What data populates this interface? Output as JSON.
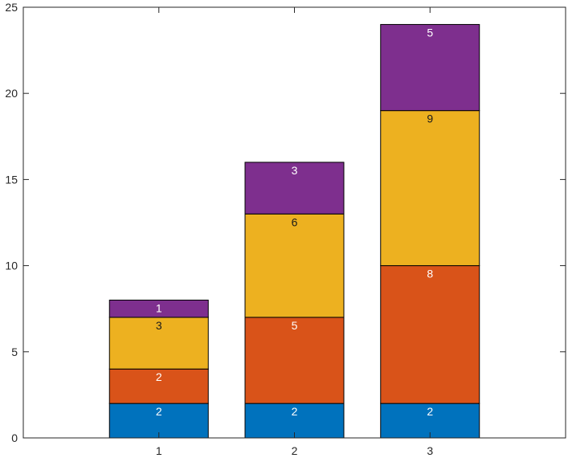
{
  "chart_data": {
    "type": "bar",
    "stacked": true,
    "categories": [
      "1",
      "2",
      "3"
    ],
    "series": [
      {
        "values": [
          2,
          2,
          2
        ],
        "color": "#0072BD",
        "label_color": "#ffffff"
      },
      {
        "values": [
          2,
          5,
          8
        ],
        "color": "#D95319",
        "label_color": "#ffffff"
      },
      {
        "values": [
          3,
          6,
          9
        ],
        "color": "#EDB120",
        "label_color": "#1a1a1a"
      },
      {
        "values": [
          1,
          3,
          5
        ],
        "color": "#7E2F8E",
        "label_color": "#ffffff"
      }
    ],
    "title": "",
    "xlabel": "",
    "ylabel": "",
    "xlim": [
      0,
      4
    ],
    "ylim": [
      0,
      25
    ],
    "yticks": [
      0,
      5,
      10,
      15,
      20,
      25
    ],
    "grid": false,
    "legend": "none",
    "data_labels": true
  }
}
